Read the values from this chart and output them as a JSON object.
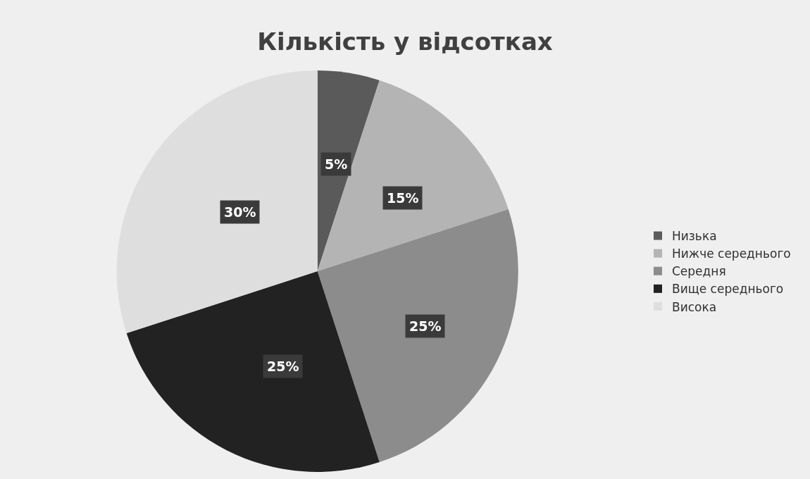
{
  "chart_data": {
    "type": "pie",
    "title": "Кількість у відсотках",
    "categories": [
      "Низька",
      "Нижче середнього",
      "Середня",
      "Вище середнього",
      "Висока"
    ],
    "values": [
      5,
      15,
      25,
      25,
      30
    ],
    "value_labels": [
      "5%",
      "15%",
      "25%",
      "25%",
      "30%"
    ],
    "colors": [
      "#5a5a5a",
      "#b4b4b4",
      "#8c8c8c",
      "#222222",
      "#dedede"
    ],
    "legend": "right"
  }
}
